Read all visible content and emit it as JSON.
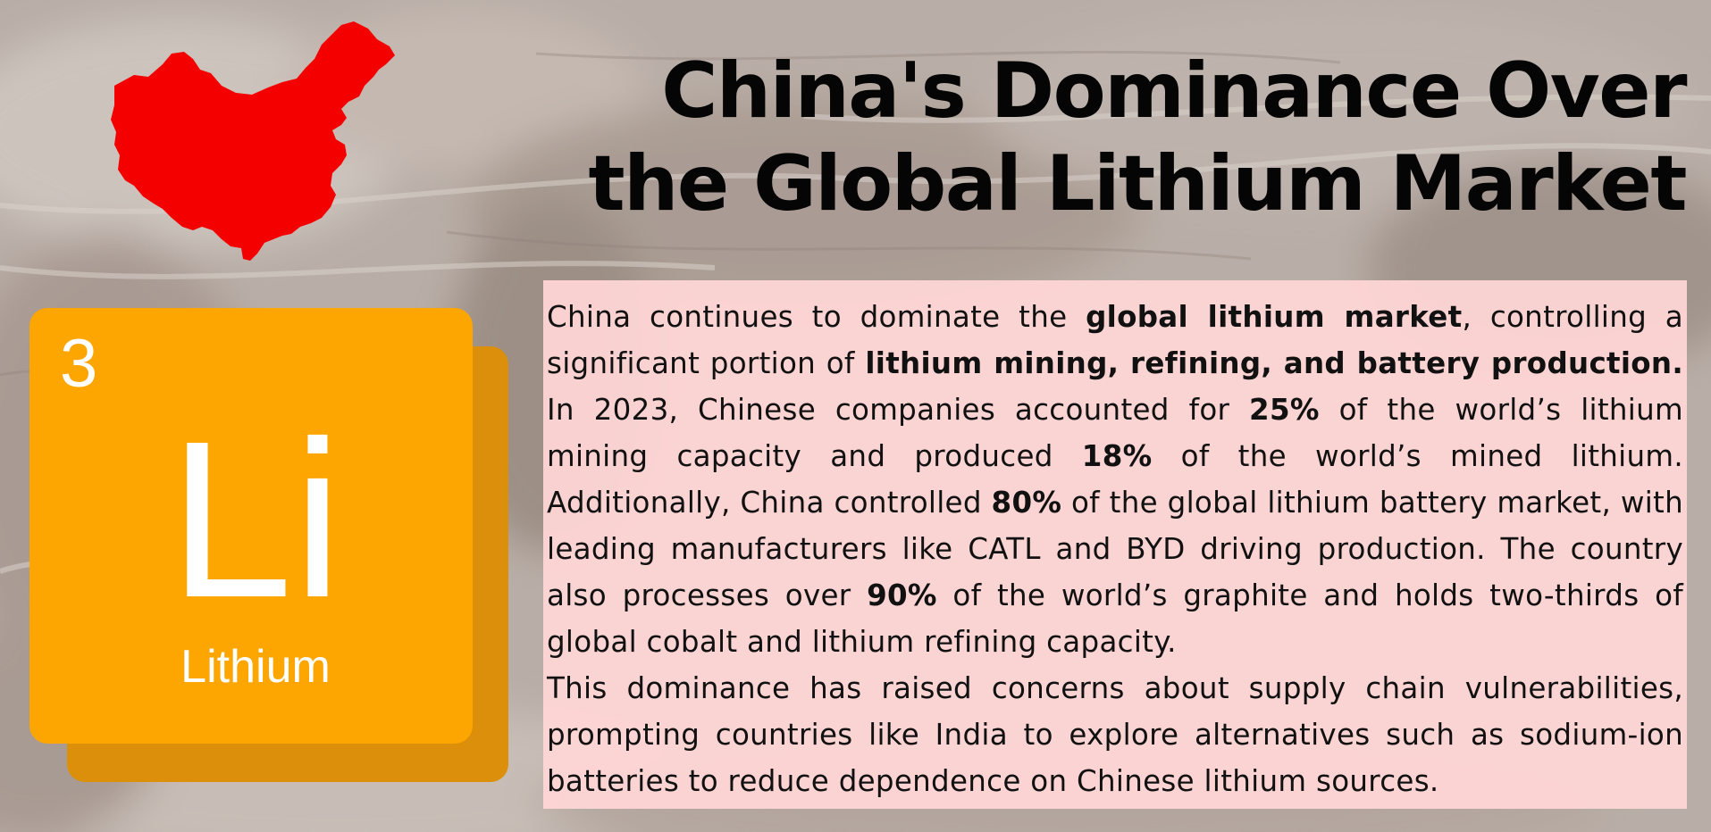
{
  "title": "China's Dominance Over the Global Lithium Market",
  "colors": {
    "map": "#f40000",
    "tile": "#fda501",
    "tile_shadow": "#dc8f0b",
    "panel": "#ffd6d6"
  },
  "element": {
    "number": "3",
    "symbol": "Li",
    "name": "Lithium"
  },
  "paragraph1": {
    "t1": "China continues to dominate the ",
    "b1": "global lithium market",
    "t2": ", controlling a significant portion of ",
    "b2": "lithium mining, refining, and battery production.",
    "t3": " In 2023, Chinese companies accounted for ",
    "b3": "25%",
    "t4": " of the world’s lithium mining capacity and produced ",
    "b4": "18%",
    "t5": " of the world’s mined lithium. Additionally, China controlled ",
    "b5": "80%",
    "t6": " of the global lithium battery market, with leading manufacturers like CATL and BYD driving production. The country also processes over ",
    "b6": "90%",
    "t7": " of the world’s graphite and holds two-thirds of global cobalt and lithium refining capacity."
  },
  "paragraph2": "This dominance has raised concerns about supply chain vulnerabilities, prompting countries like India to explore alternatives such as sodium-ion batteries to reduce dependence on Chinese lithium sources."
}
